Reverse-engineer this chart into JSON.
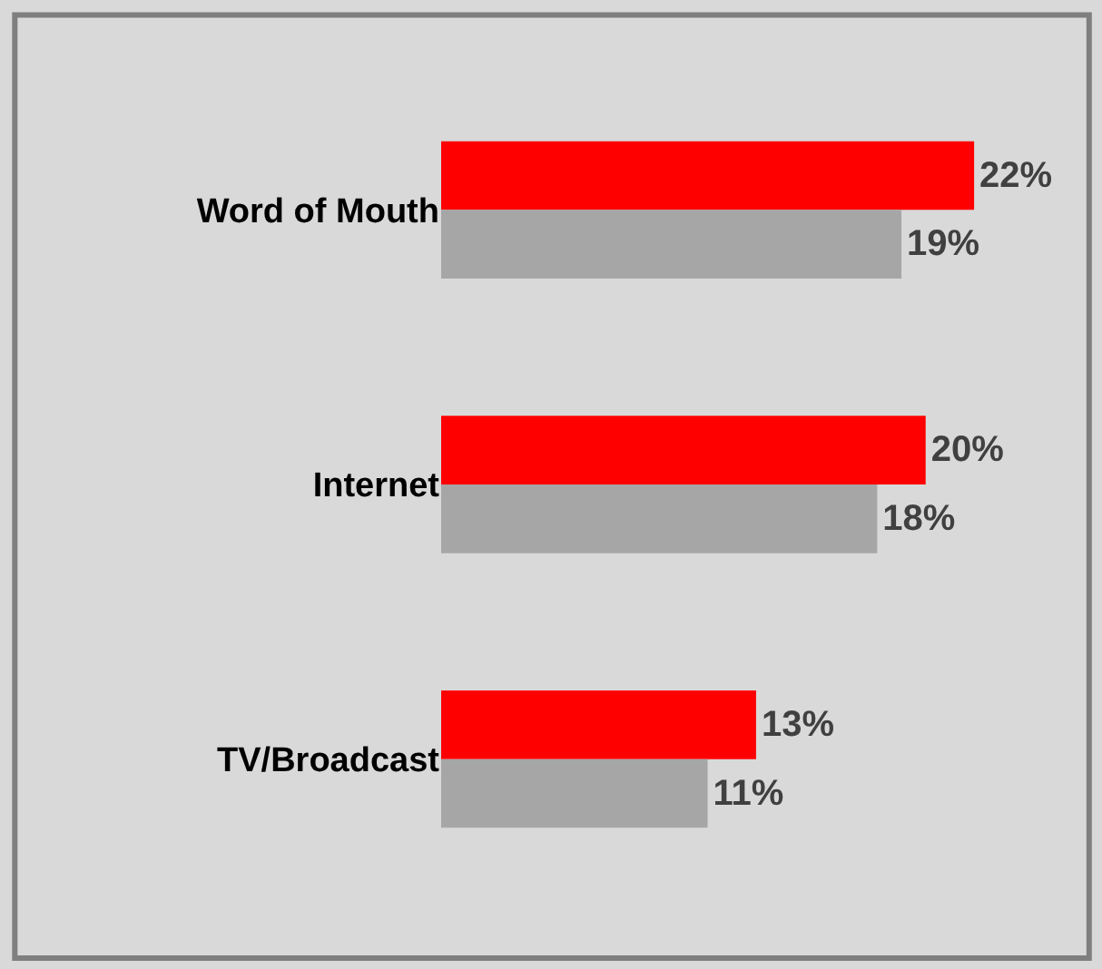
{
  "chart_data": {
    "type": "bar",
    "orientation": "horizontal",
    "categories": [
      "Word of Mouth",
      "Internet",
      "TV/Broadcast"
    ],
    "series": [
      {
        "color": "#ff0000",
        "values": [
          22,
          20,
          13
        ],
        "value_labels": [
          "22%",
          "20%",
          "13%"
        ]
      },
      {
        "color": "#a6a6a6",
        "values": [
          19,
          18,
          11
        ],
        "value_labels": [
          "19%",
          "18%",
          "11%"
        ]
      }
    ],
    "legend": false
  }
}
